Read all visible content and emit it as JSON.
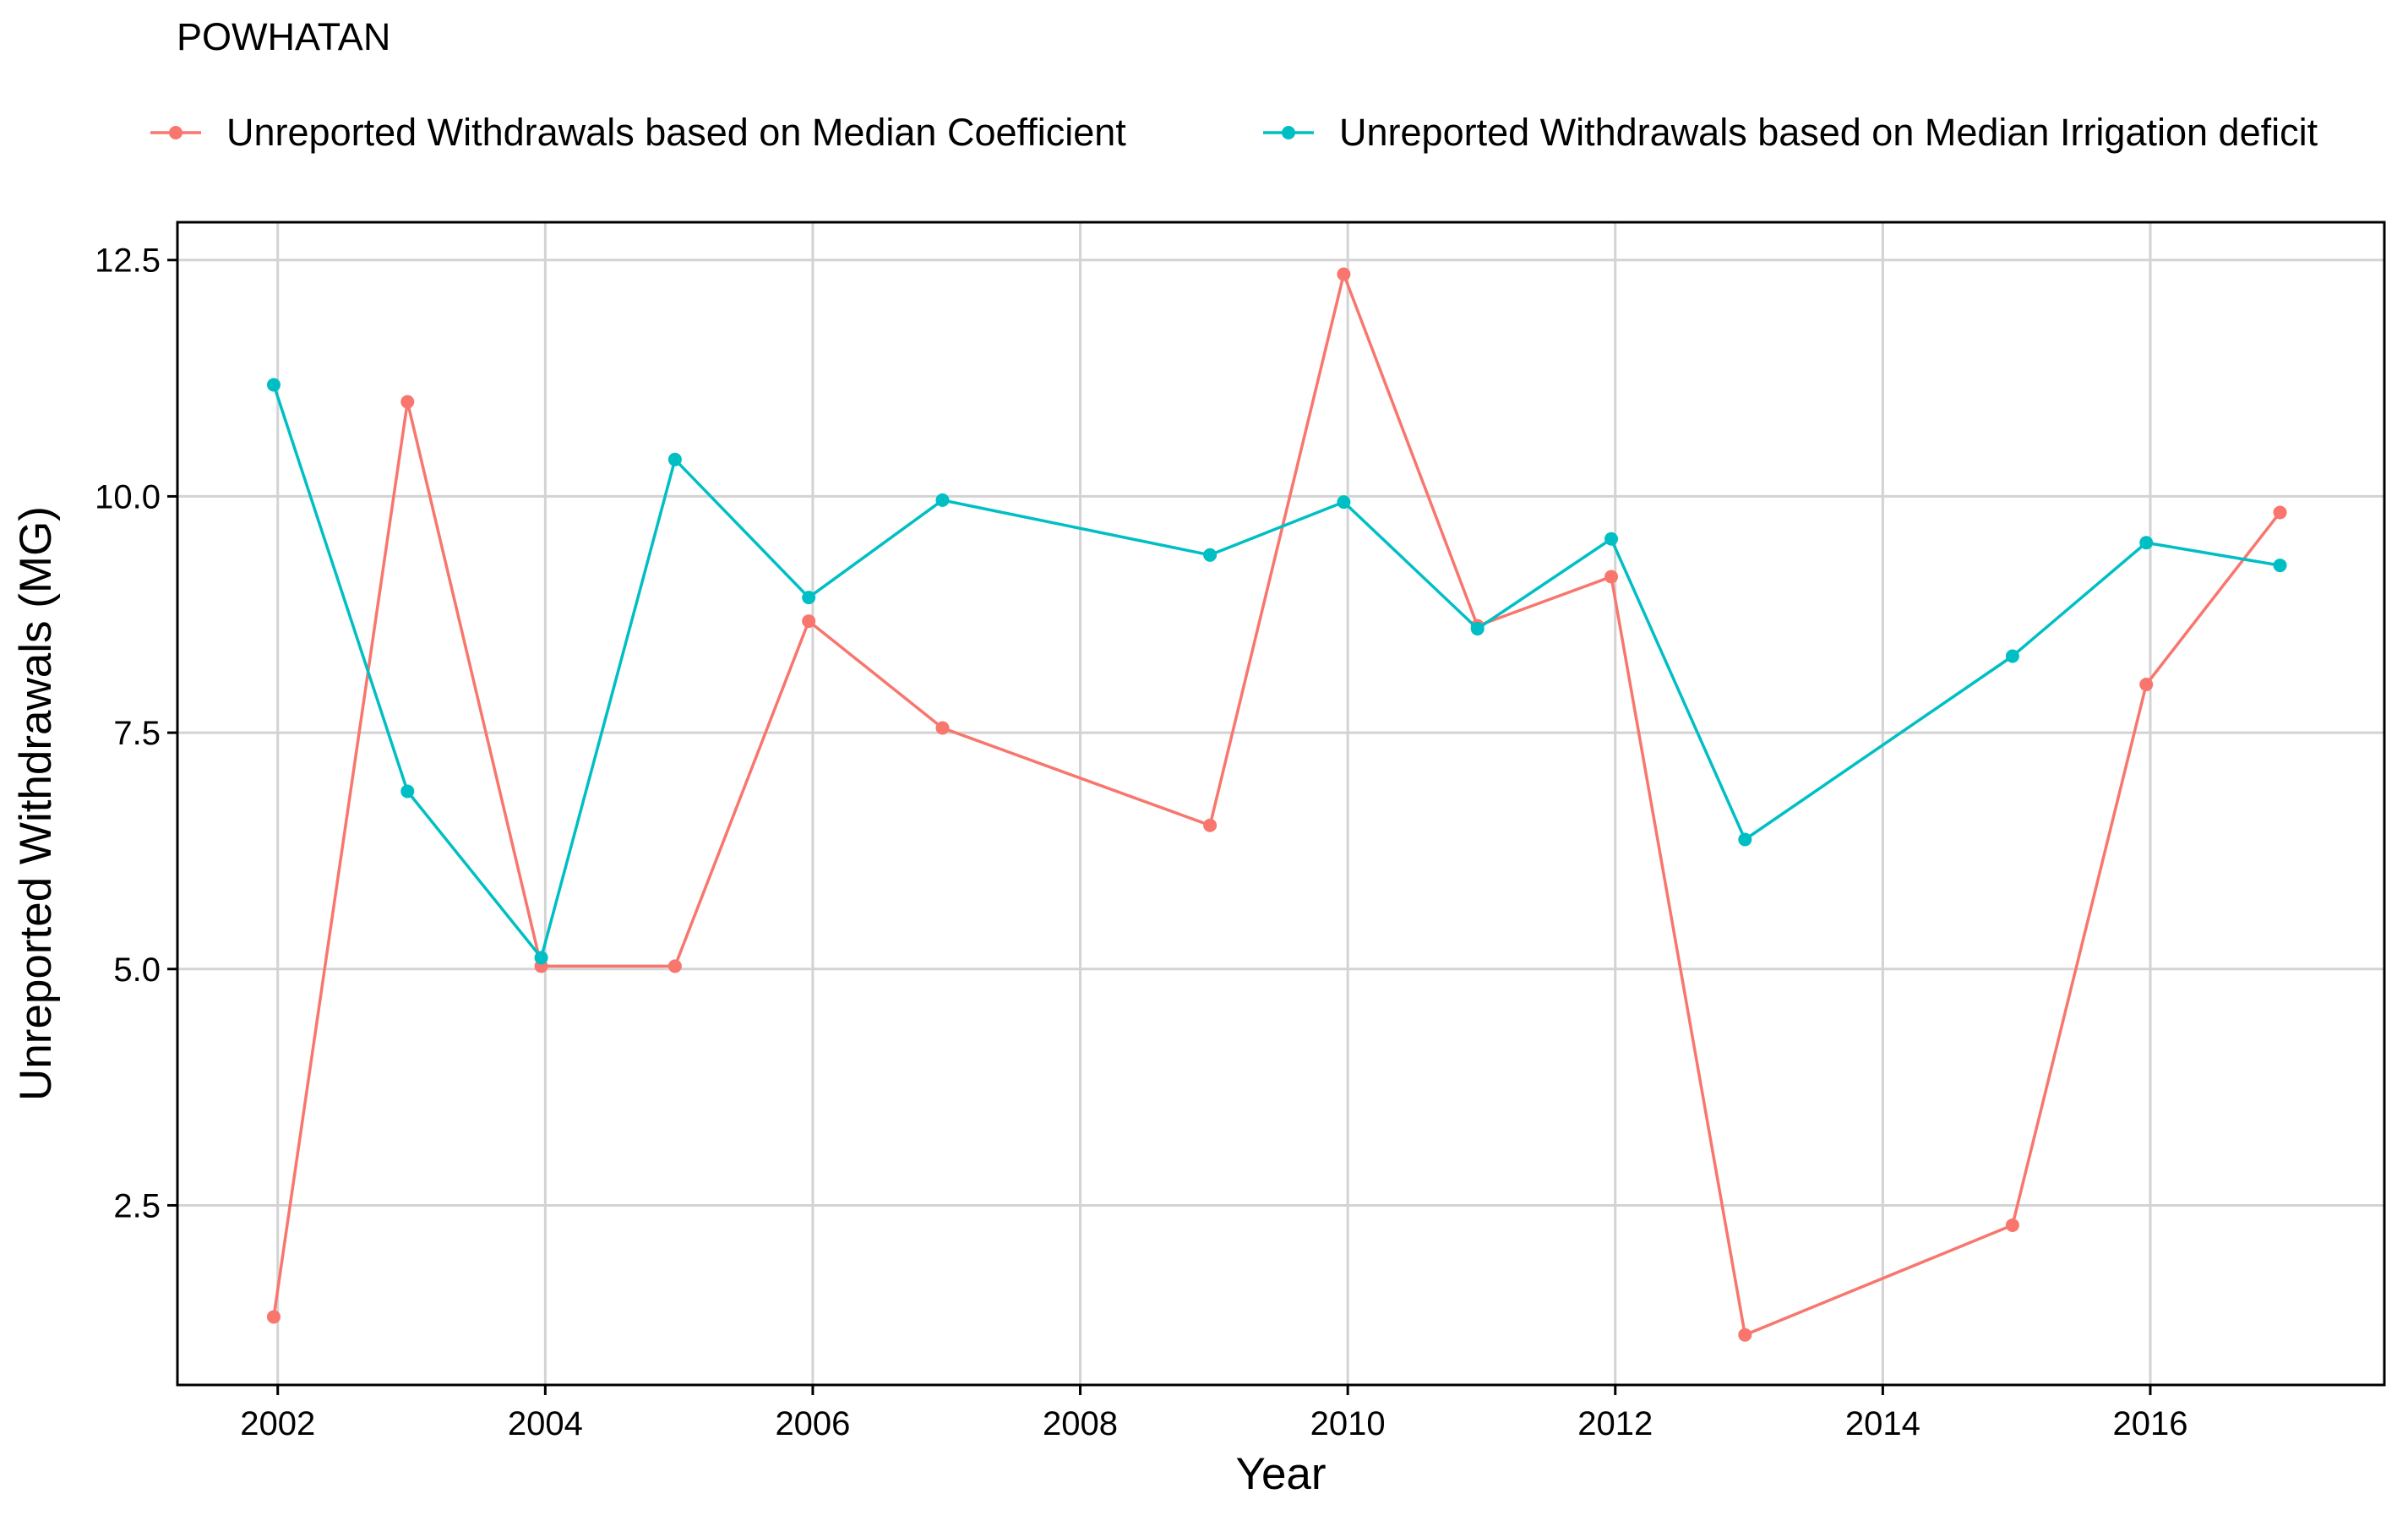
{
  "chart_data": {
    "type": "line",
    "title": "POWHATAN",
    "xlabel": "Year",
    "ylabel": "Unreported Withdrawals (MG)",
    "xlim": [
      2001.25,
      2017.75
    ],
    "ylim": [
      0.6,
      12.9
    ],
    "x_ticks": [
      2002,
      2004,
      2006,
      2008,
      2010,
      2012,
      2014,
      2016
    ],
    "y_ticks": [
      2.5,
      5.0,
      7.5,
      10.0,
      12.5
    ],
    "y_tick_labels": [
      "2.5",
      "5.0",
      "7.5",
      "10.0",
      "12.5"
    ],
    "x_tick_labels": [
      "2002",
      "2004",
      "2006",
      "2008",
      "2010",
      "2012",
      "2014",
      "2016"
    ],
    "grid": true,
    "legend_position": "top",
    "series": [
      {
        "name": "Unreported Withdrawals based on Median Coefficient",
        "color": "#F8766D",
        "points": [
          {
            "x": 2001.97,
            "y": 1.32
          },
          {
            "x": 2002.97,
            "y": 11.0
          },
          {
            "x": 2003.97,
            "y": 5.03
          },
          {
            "x": 2004.97,
            "y": 5.03
          },
          {
            "x": 2005.97,
            "y": 8.68
          },
          {
            "x": 2006.97,
            "y": 7.55
          },
          {
            "x": 2008.97,
            "y": 6.52
          },
          {
            "x": 2009.97,
            "y": 12.35
          },
          {
            "x": 2010.97,
            "y": 8.63
          },
          {
            "x": 2011.97,
            "y": 9.15
          },
          {
            "x": 2012.97,
            "y": 1.13
          },
          {
            "x": 2014.97,
            "y": 2.29
          },
          {
            "x": 2015.97,
            "y": 8.01
          },
          {
            "x": 2016.97,
            "y": 9.83
          }
        ]
      },
      {
        "name": "Unreported Withdrawals based on Median Irrigation deficit",
        "color": "#00BFC4",
        "points": [
          {
            "x": 2001.97,
            "y": 11.18
          },
          {
            "x": 2002.97,
            "y": 6.88
          },
          {
            "x": 2003.97,
            "y": 5.12
          },
          {
            "x": 2004.97,
            "y": 10.39
          },
          {
            "x": 2005.97,
            "y": 8.93
          },
          {
            "x": 2006.97,
            "y": 9.96
          },
          {
            "x": 2008.97,
            "y": 9.38
          },
          {
            "x": 2009.97,
            "y": 9.94
          },
          {
            "x": 2010.97,
            "y": 8.6
          },
          {
            "x": 2011.97,
            "y": 9.55
          },
          {
            "x": 2012.97,
            "y": 6.37
          },
          {
            "x": 2014.97,
            "y": 8.31
          },
          {
            "x": 2015.97,
            "y": 9.51
          },
          {
            "x": 2016.97,
            "y": 9.27
          }
        ]
      }
    ]
  }
}
